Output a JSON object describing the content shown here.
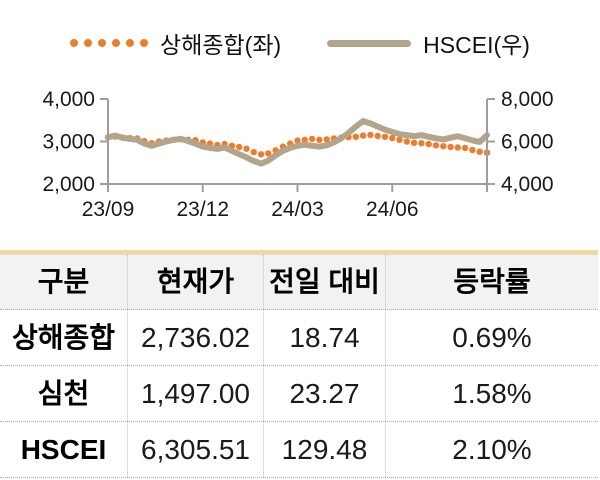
{
  "chart_data": {
    "type": "line",
    "title": "",
    "x_tick_labels": [
      "23/09",
      "23/12",
      "24/03",
      "24/06",
      ""
    ],
    "left_axis": {
      "range": [
        2000,
        4000
      ],
      "ticks": [
        4000,
        3000,
        2000
      ],
      "tick_labels": [
        "4,000",
        "3,000",
        "2,000"
      ]
    },
    "right_axis": {
      "range": [
        4000,
        8000
      ],
      "ticks": [
        8000,
        6000,
        4000
      ],
      "tick_labels": [
        "8,000",
        "6,000",
        "4,000"
      ]
    },
    "grid": false,
    "legend_position": "top",
    "axis_color": "#9e9e9e",
    "series": [
      {
        "name": "상해종합(좌)",
        "axis": "left",
        "style": "dotted",
        "color": "#ED7D2B",
        "values": [
          3100,
          3115,
          3090,
          3080,
          3070,
          3010,
          2960,
          3000,
          3020,
          3040,
          3055,
          3040,
          3030,
          2980,
          2950,
          2920,
          2940,
          2900,
          2870,
          2830,
          2750,
          2700,
          2720,
          2790,
          2880,
          2950,
          3020,
          3040,
          3060,
          3040,
          3050,
          3070,
          3090,
          3100,
          3110,
          3140,
          3155,
          3130,
          3110,
          3080,
          3040,
          3000,
          2970,
          2960,
          2940,
          2910,
          2890,
          2870,
          2860,
          2850,
          2800,
          2760,
          2736
        ]
      },
      {
        "name": "HSCEI(우)",
        "axis": "right",
        "style": "solid",
        "color": "#B3A58C",
        "values": [
          6200,
          6280,
          6180,
          6120,
          6080,
          5900,
          5800,
          5900,
          6000,
          6080,
          6120,
          6020,
          5900,
          5760,
          5700,
          5650,
          5720,
          5560,
          5400,
          5250,
          5080,
          4960,
          5100,
          5350,
          5560,
          5700,
          5800,
          5850,
          5800,
          5760,
          5820,
          5960,
          6150,
          6400,
          6700,
          6960,
          6850,
          6700,
          6560,
          6450,
          6350,
          6300,
          6250,
          6300,
          6220,
          6150,
          6100,
          6180,
          6250,
          6150,
          6050,
          5980,
          6305
        ]
      }
    ]
  },
  "legend": {
    "shanghai_label": "상해종합(좌)",
    "hscei_label": "HSCEI(우)"
  },
  "table": {
    "headers": [
      "구분",
      "현재가",
      "전일 대비",
      "등락률"
    ],
    "rows": [
      {
        "name": "상해종합",
        "price": "2,736.02",
        "change": "18.74",
        "pct": "0.69%"
      },
      {
        "name": "심천",
        "price": "1,497.00",
        "change": "23.27",
        "pct": "1.58%"
      },
      {
        "name": "HSCEI",
        "price": "6,305.51",
        "change": "129.48",
        "pct": "2.10%"
      }
    ]
  },
  "colors": {
    "shanghai_orange": "#ED7D2B",
    "hscei_tan": "#B3A58C",
    "table_top_border": "#EBD9A8",
    "header_bg": "#F2F2F2",
    "axis_gray": "#9e9e9e"
  }
}
